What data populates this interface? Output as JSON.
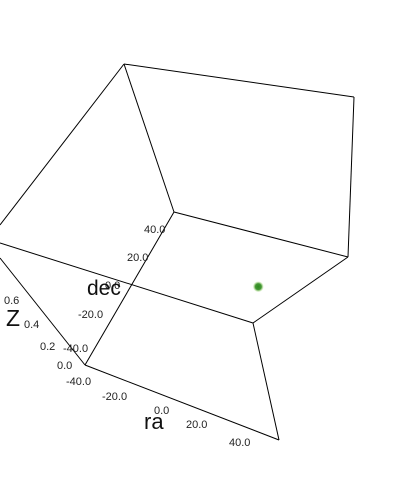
{
  "chart_data": {
    "type": "scatter",
    "projection": "3d",
    "title": "",
    "axes": {
      "x": {
        "label": "ra",
        "ticks": [
          "-40.0",
          "-20.0",
          "0.0",
          "20.0",
          "40.0"
        ]
      },
      "y": {
        "label": "dec",
        "ticks": [
          "-40.0",
          "-20.0",
          "0.0",
          "20.0",
          "40.0"
        ]
      },
      "z": {
        "label": "z",
        "ticks": [
          "0.0",
          "0.2",
          "0.4",
          "0.6"
        ]
      }
    },
    "series": [
      {
        "points": [
          {
            "ra": 3,
            "dec": 22,
            "z": 0.0
          }
        ]
      }
    ],
    "colors": {
      "edge": "#000000",
      "point": "#2e8b1e",
      "point_glow": "#8fd14f"
    },
    "grid": false,
    "legend": "none"
  }
}
